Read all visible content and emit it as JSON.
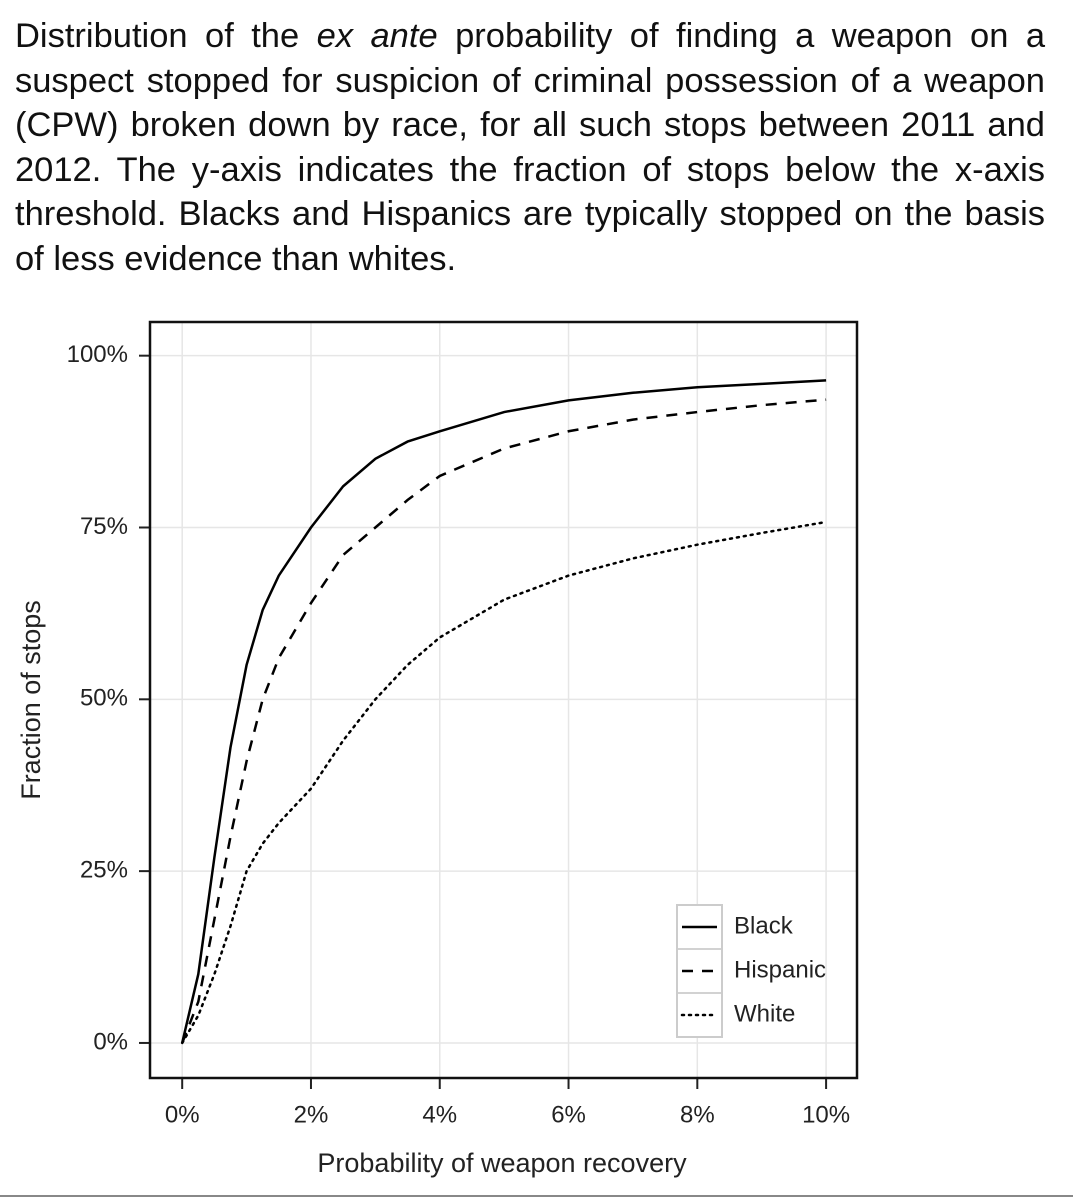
{
  "caption": [
    "Distribution of the ",
    "ex ante",
    " probability of finding a weapon on a suspect stopped for suspicion of criminal possession of a weapon (CPW) broken down by race, for all such stops between 2011 and 2012. The y-axis indicates the fraction of stops below the x-axis threshold. Blacks and Hispanics are typically stopped on the basis of less evidence than whites."
  ],
  "chart_data": {
    "type": "line",
    "x_label": "Probability of weapon recovery",
    "y_label": "Fraction of stops",
    "x": [
      0,
      0.25,
      0.5,
      0.75,
      1,
      1.25,
      1.5,
      2,
      2.5,
      3,
      3.5,
      4,
      5,
      6,
      7,
      8,
      9,
      10
    ],
    "series": [
      {
        "name": "Black",
        "color": "#000000",
        "linetype": "solid",
        "values": [
          0,
          10,
          27,
          43,
          55,
          63,
          68,
          75,
          81,
          85,
          87.5,
          89,
          91.8,
          93.5,
          94.6,
          95.4,
          95.9,
          96.4
        ]
      },
      {
        "name": "Hispanic",
        "color": "#000000",
        "linetype": "dashed",
        "values": [
          0,
          6,
          18,
          30,
          41,
          50,
          56,
          64,
          71,
          75,
          79,
          82.5,
          86.5,
          89,
          90.7,
          91.8,
          92.8,
          93.6
        ]
      },
      {
        "name": "White",
        "color": "#000000",
        "linetype": "dotted",
        "values": [
          0,
          4,
          10,
          17,
          25,
          29,
          32,
          37,
          44,
          50,
          55,
          59,
          64.5,
          68,
          70.5,
          72.5,
          74.2,
          75.8
        ]
      }
    ],
    "xlim": [
      -0.5,
      10.48
    ],
    "ylim": [
      -5.1,
      104.9
    ],
    "xticks": [
      {
        "value": 0,
        "label": "0%"
      },
      {
        "value": 2,
        "label": "2%"
      },
      {
        "value": 4,
        "label": "4%"
      },
      {
        "value": 6,
        "label": "6%"
      },
      {
        "value": 8,
        "label": "8%"
      },
      {
        "value": 10,
        "label": "10%"
      }
    ],
    "yticks": [
      {
        "value": 0,
        "label": "0%"
      },
      {
        "value": 25,
        "label": "25%"
      },
      {
        "value": 50,
        "label": "50%"
      },
      {
        "value": 75,
        "label": "75%"
      },
      {
        "value": 100,
        "label": "100%"
      }
    ],
    "grid": true,
    "legend": "bottom-right"
  }
}
